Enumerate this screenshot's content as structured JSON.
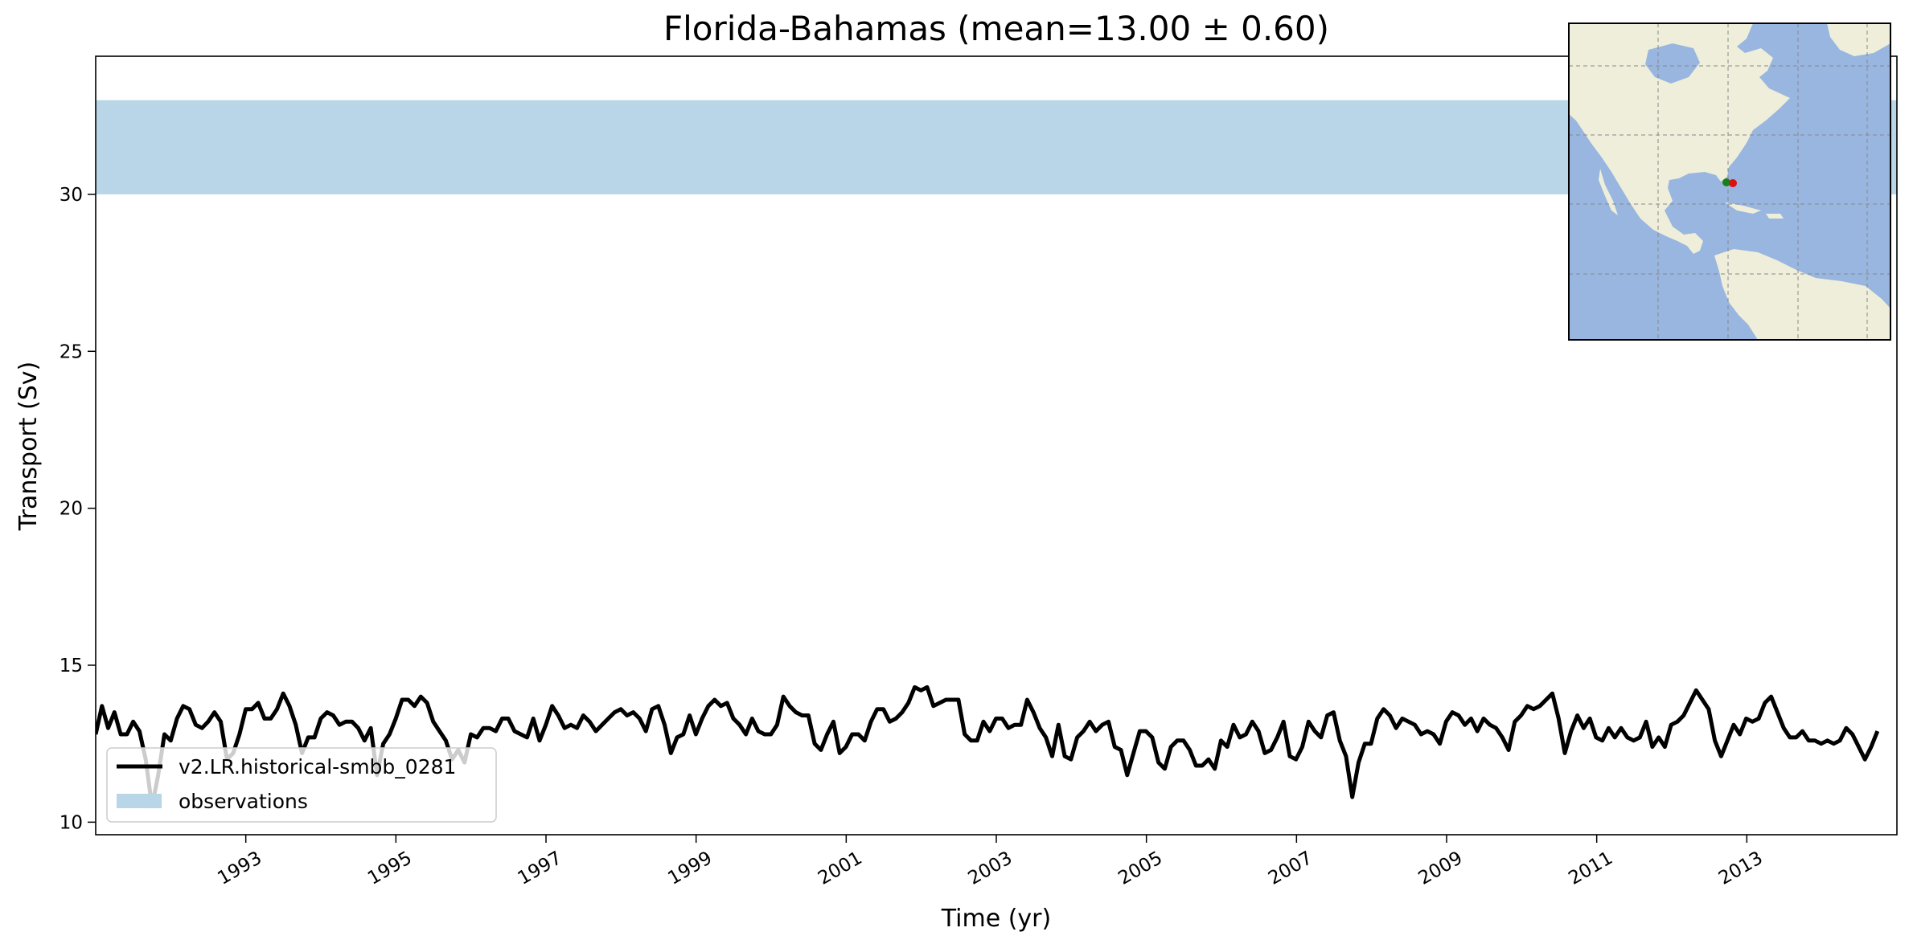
{
  "chart_data": {
    "type": "line",
    "title": "Florida-Bahamas (mean=13.00 ± 0.60)",
    "xlabel": "Time (yr)",
    "ylabel": "Transport (Sv)",
    "xlim": [
      1991.0,
      2015.0
    ],
    "ylim": [
      9.6,
      34.4
    ],
    "xticks": [
      1993,
      1995,
      1997,
      1999,
      2001,
      2003,
      2005,
      2007,
      2009,
      2011,
      2013
    ],
    "yticks": [
      10,
      15,
      20,
      25,
      30
    ],
    "grid": false,
    "legend_position": "lower left",
    "observations": {
      "name": "observations",
      "ymin": 30,
      "ymax": 33,
      "color": "#b9d5e8"
    },
    "series": [
      {
        "name": "v2.LR.historical-smbb_0281",
        "color": "#000000",
        "x_start": 1991.0,
        "x_step": 0.0833,
        "values": [
          12.8,
          13.7,
          13.0,
          13.5,
          12.8,
          12.8,
          13.2,
          12.9,
          12.0,
          10.5,
          11.5,
          12.8,
          12.6,
          13.3,
          13.7,
          13.6,
          13.1,
          13.0,
          13.2,
          13.5,
          13.2,
          12.0,
          12.2,
          12.8,
          13.6,
          13.6,
          13.8,
          13.3,
          13.3,
          13.6,
          14.1,
          13.7,
          13.1,
          12.2,
          12.7,
          12.7,
          13.3,
          13.5,
          13.4,
          13.1,
          13.2,
          13.2,
          13.0,
          12.6,
          13.0,
          11.5,
          12.5,
          12.8,
          13.3,
          13.9,
          13.9,
          13.7,
          14.0,
          13.8,
          13.2,
          12.9,
          12.6,
          12.0,
          12.3,
          11.9,
          12.8,
          12.7,
          13.0,
          13.0,
          12.9,
          13.3,
          13.3,
          12.9,
          12.8,
          12.7,
          13.3,
          12.6,
          13.1,
          13.7,
          13.4,
          13.0,
          13.1,
          13.0,
          13.4,
          13.2,
          12.9,
          13.1,
          13.3,
          13.5,
          13.6,
          13.4,
          13.5,
          13.3,
          12.9,
          13.6,
          13.7,
          13.1,
          12.2,
          12.7,
          12.8,
          13.4,
          12.8,
          13.3,
          13.7,
          13.9,
          13.7,
          13.8,
          13.3,
          13.1,
          12.8,
          13.3,
          12.9,
          12.8,
          12.8,
          13.1,
          14.0,
          13.7,
          13.5,
          13.4,
          13.4,
          12.5,
          12.3,
          12.8,
          13.2,
          12.2,
          12.4,
          12.8,
          12.8,
          12.6,
          13.2,
          13.6,
          13.6,
          13.2,
          13.3,
          13.5,
          13.8,
          14.3,
          14.2,
          14.3,
          13.7,
          13.8,
          13.9,
          13.9,
          13.9,
          12.8,
          12.6,
          12.6,
          13.2,
          12.9,
          13.3,
          13.3,
          13.0,
          13.1,
          13.1,
          13.9,
          13.5,
          13.0,
          12.7,
          12.1,
          13.1,
          12.1,
          12.0,
          12.7,
          12.9,
          13.2,
          12.9,
          13.1,
          13.2,
          12.4,
          12.3,
          11.5,
          12.2,
          12.9,
          12.9,
          12.7,
          11.9,
          11.7,
          12.4,
          12.6,
          12.6,
          12.3,
          11.8,
          11.8,
          12.0,
          11.7,
          12.6,
          12.4,
          13.1,
          12.7,
          12.8,
          13.2,
          12.9,
          12.2,
          12.3,
          12.7,
          13.2,
          12.1,
          12.0,
          12.4,
          13.2,
          12.9,
          12.7,
          13.4,
          13.5,
          12.6,
          12.1,
          10.8,
          11.9,
          12.5,
          12.5,
          13.3,
          13.6,
          13.4,
          13.0,
          13.3,
          13.2,
          13.1,
          12.8,
          12.9,
          12.8,
          12.5,
          13.2,
          13.5,
          13.4,
          13.1,
          13.3,
          12.9,
          13.3,
          13.1,
          13.0,
          12.7,
          12.3,
          13.2,
          13.4,
          13.7,
          13.6,
          13.7,
          13.9,
          14.1,
          13.3,
          12.2,
          12.9,
          13.4,
          13.0,
          13.3,
          12.7,
          12.6,
          13.0,
          12.7,
          13.0,
          12.7,
          12.6,
          12.7,
          13.2,
          12.4,
          12.7,
          12.4,
          13.1,
          13.2,
          13.4,
          13.8,
          14.2,
          13.9,
          13.6,
          12.6,
          12.1,
          12.6,
          13.1,
          12.8,
          13.3,
          13.2,
          13.3,
          13.8,
          14.0,
          13.5,
          13.0,
          12.7,
          12.7,
          12.9,
          12.6,
          12.6,
          12.5,
          12.6,
          12.5,
          12.6,
          13.0,
          12.8,
          12.4,
          12.0,
          12.4,
          12.9
        ]
      }
    ]
  },
  "inset_map": {
    "land_color": "#efeedb",
    "ocean_color": "#98b6df",
    "markers": [
      {
        "name": "green-marker",
        "color": "#1a7f1a"
      },
      {
        "name": "red-marker",
        "color": "#dd1111"
      }
    ]
  }
}
